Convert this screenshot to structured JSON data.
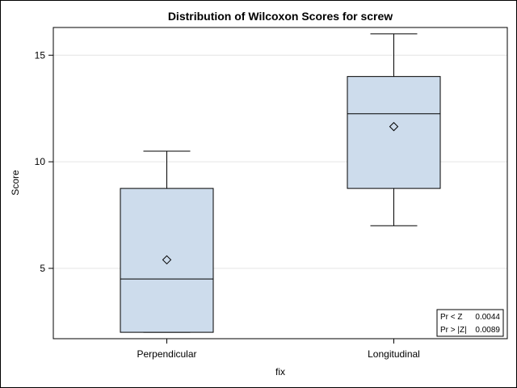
{
  "chart_data": {
    "type": "box",
    "title": "Distribution of Wilcoxon Scores for screw",
    "xlabel": "fix",
    "ylabel": "Score",
    "ylim": [
      1.7,
      16.3
    ],
    "yticks": [
      5,
      10,
      15
    ],
    "grid": "horizontal",
    "categories": [
      "Perpendicular",
      "Longitudinal"
    ],
    "boxes": [
      {
        "category": "Perpendicular",
        "min": 2.0,
        "q1": 2.0,
        "median": 4.5,
        "q3": 8.75,
        "max": 10.5,
        "mean": 5.4
      },
      {
        "category": "Longitudinal",
        "min": 7.0,
        "q1": 8.75,
        "median": 12.25,
        "q3": 14.0,
        "max": 16.0,
        "mean": 11.65
      }
    ],
    "box_fill": "#cddcec",
    "stat_inset": {
      "rows": [
        {
          "label": "Pr < Z",
          "value": "0.0044"
        },
        {
          "label": "Pr > |Z|",
          "value": "0.0089"
        }
      ]
    }
  }
}
